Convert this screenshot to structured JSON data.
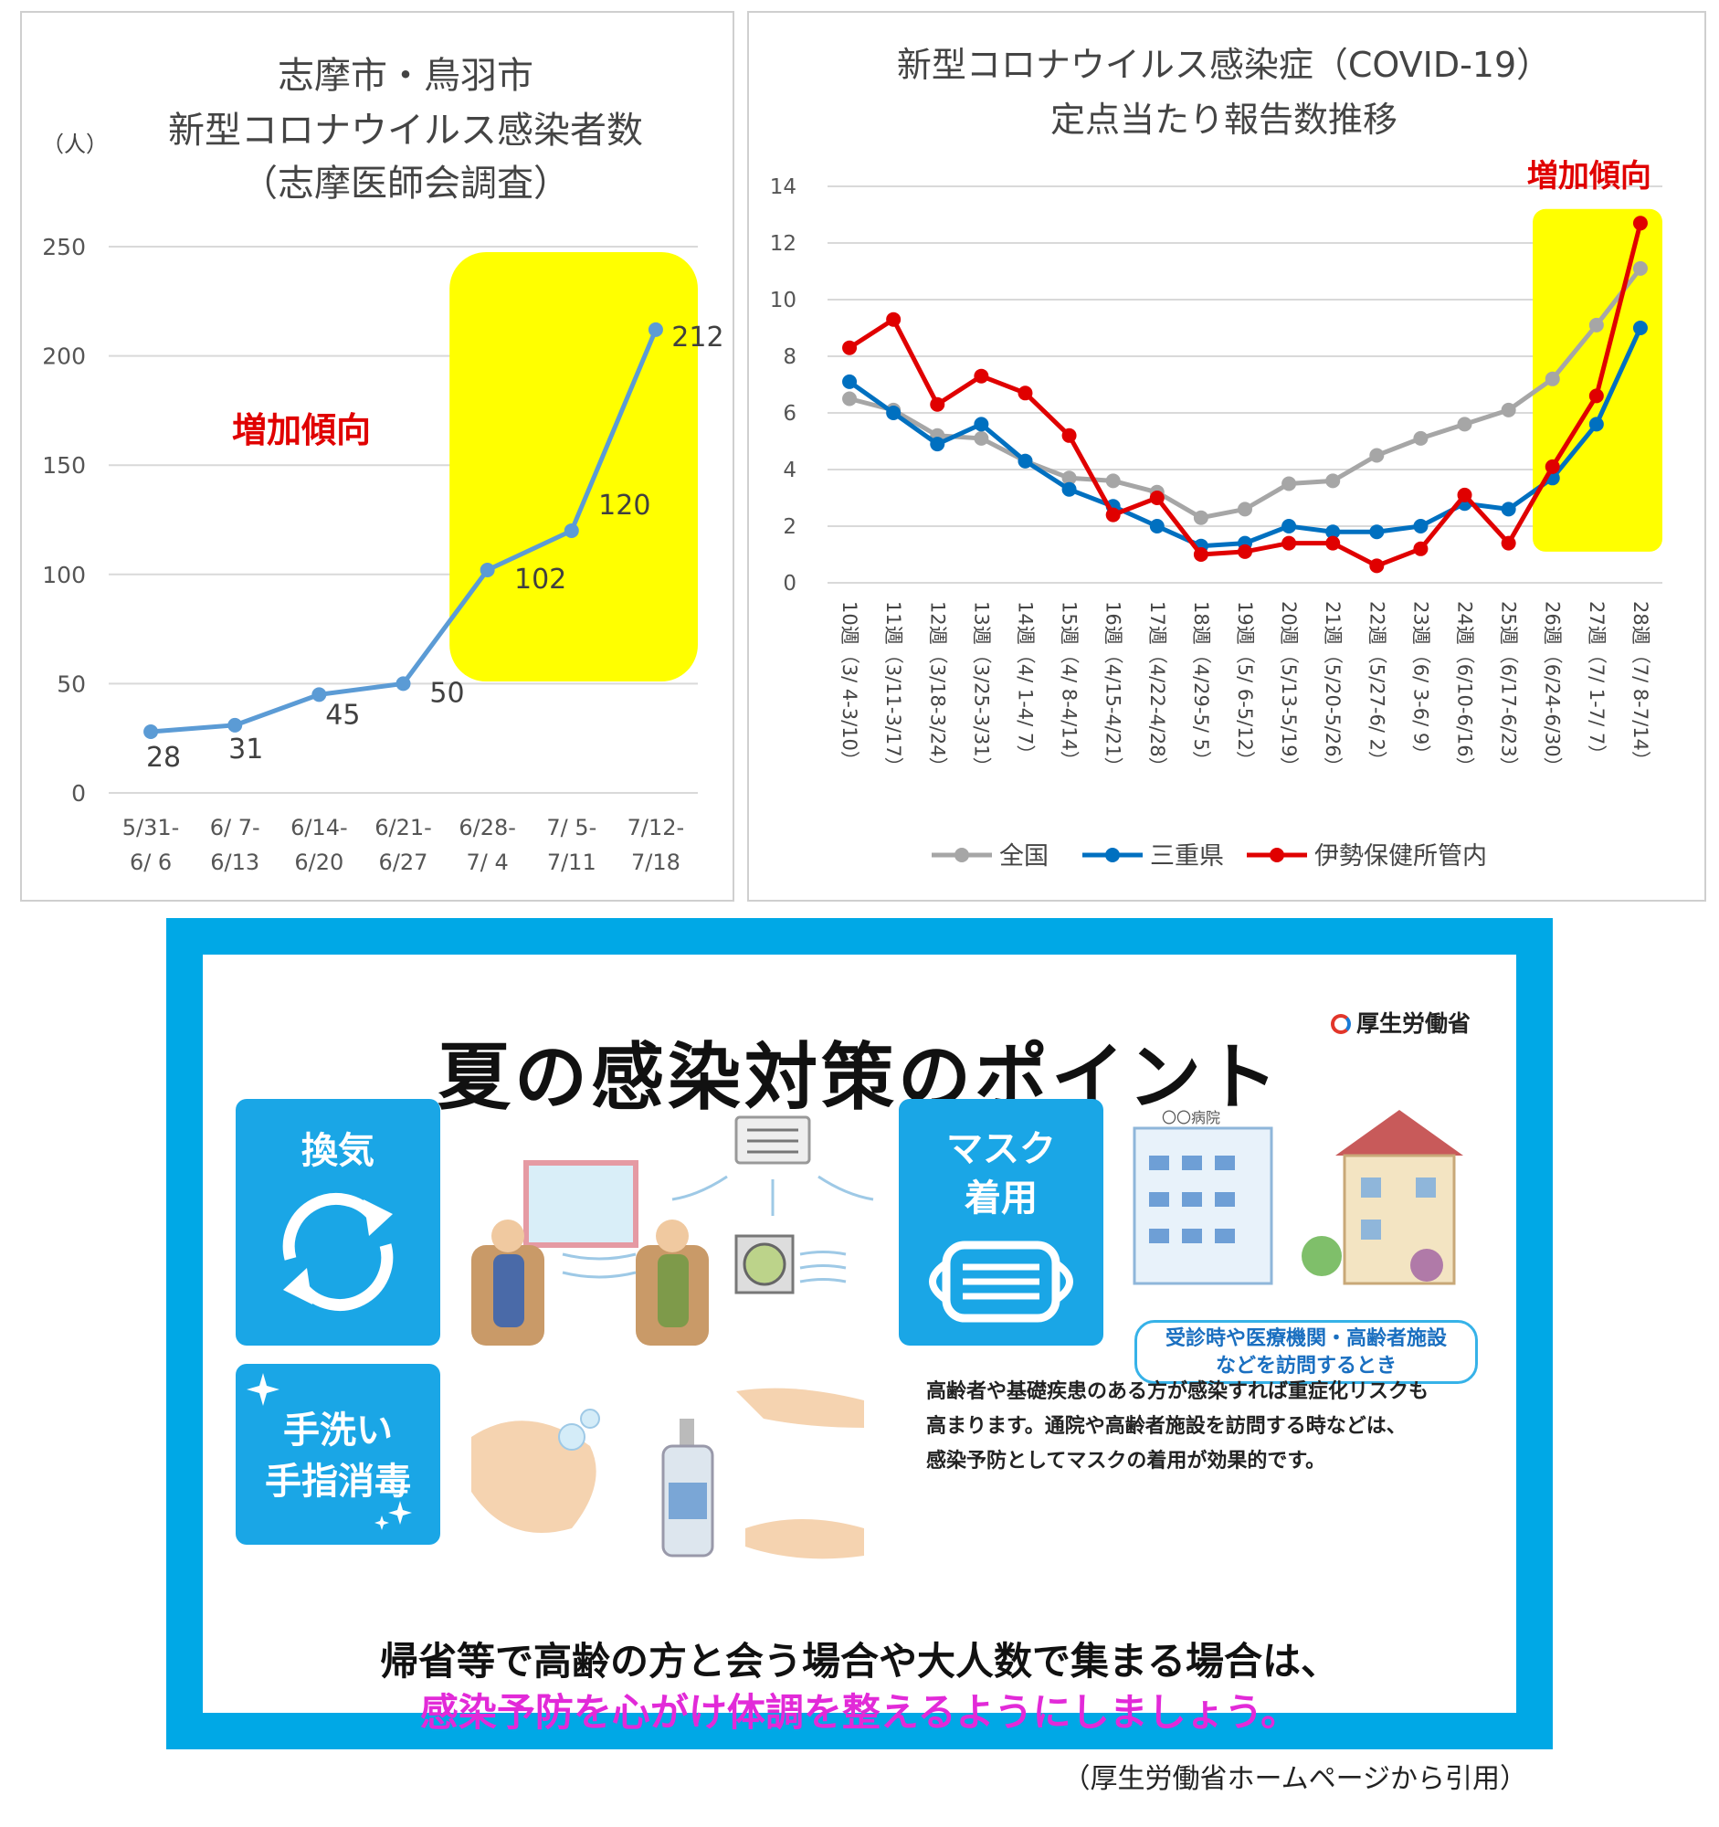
{
  "chart_data": [
    {
      "type": "line",
      "title": [
        "志摩市・鳥羽市",
        "新型コロナウイルス感染者数",
        "（志摩医師会調査）"
      ],
      "ylabel": "（人）",
      "categories": [
        [
          "5/31-",
          "6/ 6"
        ],
        [
          "6/ 7-",
          "6/13"
        ],
        [
          "6/14-",
          "6/20"
        ],
        [
          "6/21-",
          "6/27"
        ],
        [
          "6/28-",
          "7/ 4"
        ],
        [
          "7/ 5-",
          "7/11"
        ],
        [
          "7/12-",
          "7/18"
        ]
      ],
      "values": [
        28,
        31,
        45,
        50,
        102,
        120,
        212
      ],
      "data_labels": [
        "28",
        "31",
        "45",
        "50",
        "102",
        "120",
        "212"
      ],
      "ylim": [
        0,
        250
      ],
      "yticks": [
        0,
        50,
        100,
        150,
        200,
        250
      ],
      "grid": true,
      "annotation": "増加傾向",
      "highlight_range": [
        4,
        6
      ],
      "line_color": "#5b9bd5"
    },
    {
      "type": "line",
      "title": [
        "新型コロナウイルス感染症（COVID-19）",
        "定点当たり報告数推移"
      ],
      "categories": [
        "10週（3/ 4-3/10）",
        "11週（3/11-3/17）",
        "12週（3/18-3/24）",
        "13週（3/25-3/31）",
        "14週（4/ 1-4/ 7）",
        "15週（4/ 8-4/14）",
        "16週（4/15-4/21）",
        "17週（4/22-4/28）",
        "18週（4/29-5/ 5）",
        "19週（5/ 6-5/12）",
        "20週（5/13-5/19）",
        "21週（5/20-5/26）",
        "22週（5/27-6/ 2）",
        "23週（6/ 3-6/ 9）",
        "24週（6/10-6/16）",
        "25週（6/17-6/23）",
        "26週（6/24-6/30）",
        "27週（7/ 1-7/ 7）",
        "28週（7/ 8-7/14）"
      ],
      "series": [
        {
          "name": "全国",
          "color": "#a6a6a6",
          "values": [
            6.5,
            6.1,
            5.2,
            5.1,
            4.3,
            3.7,
            3.6,
            3.2,
            2.3,
            2.6,
            3.5,
            3.6,
            4.5,
            5.1,
            5.6,
            6.1,
            7.2,
            9.1,
            11.1
          ]
        },
        {
          "name": "三重県",
          "color": "#0070c0",
          "values": [
            7.1,
            6.0,
            4.9,
            5.6,
            4.3,
            3.3,
            2.7,
            2.0,
            1.3,
            1.4,
            2.0,
            1.8,
            1.8,
            2.0,
            2.8,
            2.6,
            3.7,
            5.6,
            9.0
          ]
        },
        {
          "name": "伊勢保健所管内",
          "color": "#e00000",
          "values": [
            8.3,
            9.3,
            6.3,
            7.3,
            6.7,
            5.2,
            2.4,
            3.0,
            1.0,
            1.1,
            1.4,
            1.4,
            0.6,
            1.2,
            3.1,
            1.4,
            4.1,
            6.6,
            12.7
          ]
        }
      ],
      "ylim": [
        0,
        14
      ],
      "yticks": [
        0,
        2,
        4,
        6,
        8,
        10,
        12,
        14
      ],
      "grid": true,
      "legend": "bottom",
      "annotation": "増加傾向",
      "highlight_range": [
        16,
        18
      ]
    }
  ],
  "poster": {
    "logo": "厚生労働省",
    "title": "夏の感染対策のポイント",
    "ventilation_label": "換気",
    "handwash_label": [
      "手洗い",
      "手指消毒"
    ],
    "mask_label": [
      "マスク",
      "着用"
    ],
    "hospital_sign": "〇〇病院",
    "visit_note": [
      "受診時や医療機関・高齢者施設",
      "などを訪問するとき"
    ],
    "mask_description": [
      "高齢者や基礎疾患のある方が感染すれば重症化リスクも",
      "高まります。通院や高齢者施設を訪問する時などは、",
      "感染予防としてマスクの着用が効果的です。"
    ],
    "bottom_line1": "帰省等で高齢の方と会う場合や大人数で集まる場合は、",
    "bottom_line2": "感染予防を心がけ体調を整えるようにしましょう。",
    "accent_color": "#00a8e6",
    "tile_color": "#1aa6e6",
    "highlight_color": "#e22ad8",
    "icons": [
      "recycle-arrows-icon",
      "sparkle-icon",
      "mask-icon",
      "air-conditioner-icon",
      "ventilation-fan-icon",
      "hospital-building-icon",
      "care-home-icon",
      "sanitizer-bottle-icon"
    ]
  },
  "source_note": "（厚生労働省ホームページから引用）"
}
